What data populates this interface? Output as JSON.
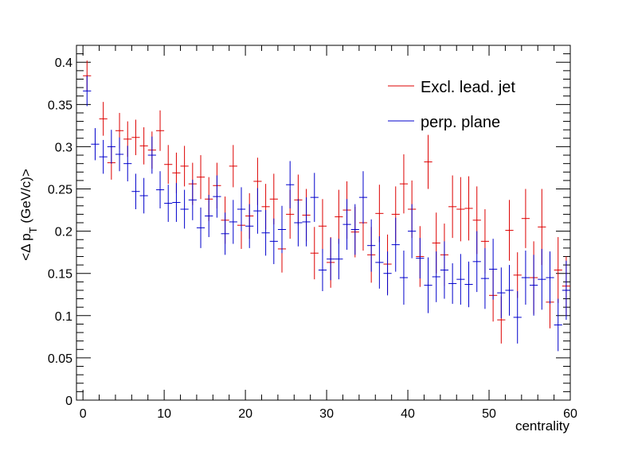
{
  "chart_data": {
    "type": "scatter",
    "title": "",
    "xlabel": "centrality",
    "ylabel": "<Δ p_T (GeV/c)>",
    "ylabel_main": "<Δ p",
    "ylabel_sub": "T",
    "ylabel_tail": " (GeV/c)>",
    "xlim": [
      -0.8,
      60
    ],
    "ylim": [
      0,
      0.42
    ],
    "x_ticks": [
      0,
      10,
      20,
      30,
      40,
      50,
      60
    ],
    "x_tick_labels": [
      "0",
      "10",
      "20",
      "30",
      "40",
      "50",
      "60"
    ],
    "y_ticks": [
      0,
      0.05,
      0.1,
      0.15,
      0.2,
      0.25,
      0.3,
      0.35,
      0.4
    ],
    "y_tick_labels": [
      "0",
      "0.05",
      "0.1",
      "0.15",
      "0.2",
      "0.25",
      "0.3",
      "0.35",
      "0.4"
    ],
    "grid": false,
    "legend_position": "top-right",
    "series": [
      {
        "name": "Excl. lead. jet",
        "color": "#dd0000",
        "x": [
          0.5,
          2.5,
          3.5,
          4.5,
          5.5,
          6.5,
          7.5,
          8.5,
          9.5,
          10.5,
          11.5,
          12.5,
          13.5,
          14.5,
          15.5,
          16.5,
          17.5,
          18.5,
          19.5,
          20.5,
          21.5,
          22.5,
          23.5,
          24.5,
          25.5,
          26.5,
          27.5,
          28.5,
          29.5,
          30.5,
          31.5,
          32.5,
          33.5,
          34.5,
          35.5,
          36.5,
          37.5,
          38.5,
          39.5,
          40.5,
          41.5,
          42.5,
          43.5,
          44.5,
          45.5,
          46.5,
          47.5,
          48.5,
          49.5,
          50.5,
          51.5,
          52.5,
          53.5,
          54.5,
          55.5,
          56.5,
          57.5,
          58.5,
          59.5
        ],
        "y": [
          0.384,
          0.333,
          0.281,
          0.319,
          0.309,
          0.311,
          0.301,
          0.296,
          0.319,
          0.279,
          0.269,
          0.277,
          0.256,
          0.264,
          0.238,
          0.254,
          0.213,
          0.277,
          0.207,
          0.218,
          0.259,
          0.229,
          0.238,
          0.179,
          0.22,
          0.237,
          0.219,
          0.174,
          0.206,
          0.163,
          0.217,
          0.225,
          0.199,
          0.21,
          0.172,
          0.221,
          0.161,
          0.22,
          0.256,
          0.226,
          0.17,
          0.282,
          0.186,
          0.172,
          0.229,
          0.226,
          0.227,
          0.213,
          0.188,
          0.124,
          0.095,
          0.201,
          0.148,
          0.215,
          0.145,
          0.205,
          0.116,
          0.154,
          0.135
        ],
        "err": [
          0.018,
          0.02,
          0.02,
          0.021,
          0.021,
          0.021,
          0.022,
          0.022,
          0.024,
          0.023,
          0.024,
          0.024,
          0.025,
          0.026,
          0.026,
          0.027,
          0.028,
          0.025,
          0.028,
          0.027,
          0.028,
          0.027,
          0.03,
          0.028,
          0.029,
          0.03,
          0.031,
          0.031,
          0.032,
          0.03,
          0.032,
          0.034,
          0.03,
          0.033,
          0.033,
          0.034,
          0.035,
          0.033,
          0.035,
          0.034,
          0.036,
          0.032,
          0.036,
          0.037,
          0.037,
          0.038,
          0.038,
          0.04,
          0.038,
          0.031,
          0.028,
          0.036,
          0.027,
          0.035,
          0.043,
          0.045,
          0.031,
          0.039,
          0.035
        ]
      },
      {
        "name": "perp. plane",
        "color": "#0000cc",
        "x": [
          0.5,
          1.5,
          2.5,
          3.5,
          4.5,
          5.5,
          6.5,
          7.5,
          8.5,
          9.5,
          10.5,
          11.5,
          12.5,
          13.5,
          14.5,
          15.5,
          16.5,
          17.5,
          18.5,
          19.5,
          20.5,
          21.5,
          22.5,
          23.5,
          24.5,
          25.5,
          26.5,
          27.5,
          28.5,
          29.5,
          30.5,
          31.5,
          32.5,
          33.5,
          34.5,
          35.5,
          36.5,
          37.5,
          38.5,
          39.5,
          40.5,
          41.5,
          42.5,
          43.5,
          44.5,
          45.5,
          46.5,
          47.5,
          48.5,
          49.5,
          50.5,
          51.5,
          52.5,
          53.5,
          54.5,
          55.5,
          56.5,
          57.5,
          58.5,
          59.5
        ],
        "y": [
          0.366,
          0.303,
          0.288,
          0.3,
          0.291,
          0.28,
          0.247,
          0.242,
          0.29,
          0.249,
          0.233,
          0.234,
          0.226,
          0.237,
          0.204,
          0.218,
          0.241,
          0.197,
          0.211,
          0.226,
          0.206,
          0.224,
          0.198,
          0.188,
          0.202,
          0.255,
          0.21,
          0.211,
          0.24,
          0.154,
          0.167,
          0.167,
          0.208,
          0.202,
          0.24,
          0.183,
          0.163,
          0.15,
          0.184,
          0.145,
          0.2,
          0.168,
          0.136,
          0.146,
          0.154,
          0.138,
          0.143,
          0.137,
          0.164,
          0.144,
          0.155,
          0.127,
          0.13,
          0.098,
          0.145,
          0.136,
          0.143,
          0.145,
          0.089,
          0.13
        ],
        "err": [
          0.018,
          0.019,
          0.02,
          0.02,
          0.02,
          0.021,
          0.021,
          0.021,
          0.022,
          0.022,
          0.022,
          0.023,
          0.023,
          0.024,
          0.024,
          0.025,
          0.025,
          0.025,
          0.026,
          0.026,
          0.026,
          0.027,
          0.027,
          0.027,
          0.028,
          0.028,
          0.028,
          0.029,
          0.029,
          0.025,
          0.025,
          0.024,
          0.03,
          0.03,
          0.031,
          0.031,
          0.031,
          0.026,
          0.032,
          0.032,
          0.032,
          0.024,
          0.033,
          0.03,
          0.034,
          0.024,
          0.03,
          0.027,
          0.036,
          0.036,
          0.036,
          0.03,
          0.03,
          0.031,
          0.032,
          0.036,
          0.036,
          0.031,
          0.031,
          0.035
        ]
      }
    ]
  }
}
